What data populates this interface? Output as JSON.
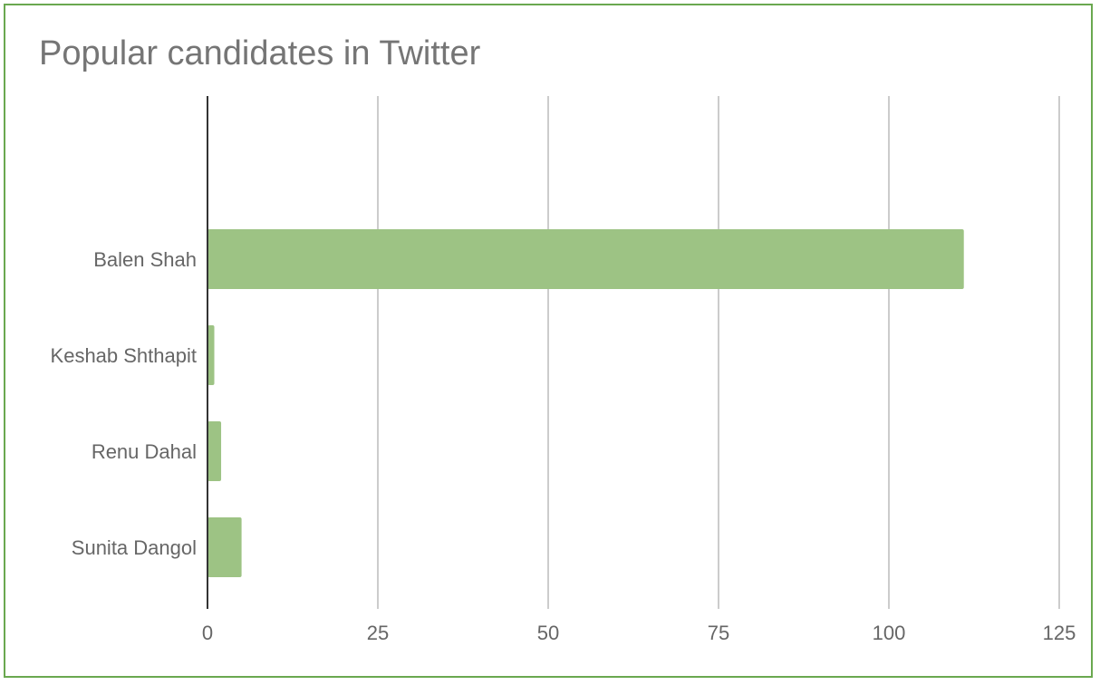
{
  "chart_data": {
    "type": "bar",
    "orientation": "horizontal",
    "title": "Popular candidates in Twitter",
    "xlabel": "",
    "ylabel": "",
    "categories": [
      "Balen Shah",
      "Keshab Shthapit",
      "Renu Dahal",
      "Sunita Dangol"
    ],
    "values": [
      111,
      1,
      2,
      5
    ],
    "xlim": [
      0,
      125
    ],
    "xticks": [
      0,
      25,
      50,
      75,
      100,
      125
    ],
    "grid": true,
    "legend": "none",
    "bar_color": "#9dc384",
    "border_color": "#6aa84f"
  }
}
